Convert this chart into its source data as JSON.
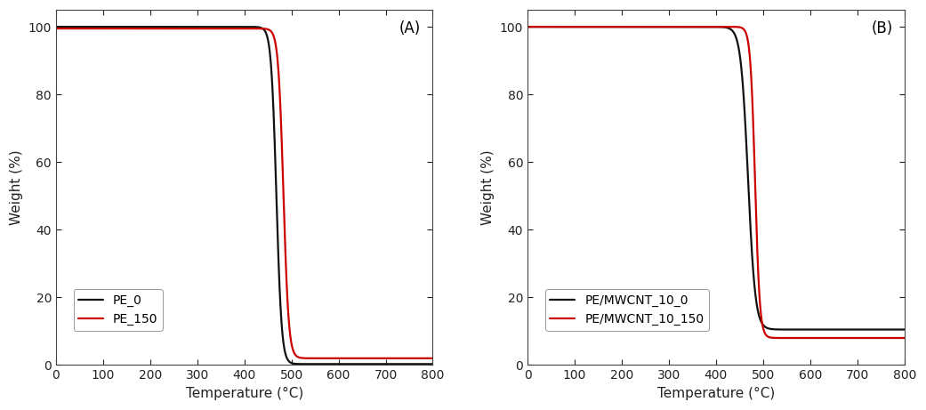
{
  "panel_A": {
    "label": "(A)",
    "xlabel": "Temperature (°C)",
    "ylabel": "Weight (%)",
    "xlim": [
      0,
      800
    ],
    "ylim": [
      0,
      105
    ],
    "yticks": [
      0,
      20,
      40,
      60,
      80,
      100
    ],
    "xticks": [
      0,
      100,
      200,
      300,
      400,
      500,
      600,
      700,
      800
    ],
    "curves": [
      {
        "label": "PE_0",
        "color": "#111111",
        "start_val": 100.0,
        "end_val": 0.3,
        "inflection": 468,
        "steepness": 0.18
      },
      {
        "label": "PE_150",
        "color": "#cc0000",
        "start_val": 99.5,
        "end_val": 2.0,
        "inflection": 483,
        "steepness": 0.18
      }
    ]
  },
  "panel_B": {
    "label": "(B)",
    "xlabel": "Temperature (°C)",
    "ylabel": "Weight (%)",
    "xlim": [
      0,
      800
    ],
    "ylim": [
      0,
      105
    ],
    "yticks": [
      0,
      20,
      40,
      60,
      80,
      100
    ],
    "xticks": [
      0,
      100,
      200,
      300,
      400,
      500,
      600,
      700,
      800
    ],
    "curves": [
      {
        "label": "PE/MWCNT_10_0",
        "color": "#111111",
        "start_val": 100.0,
        "end_val": 10.5,
        "inflection": 468,
        "steepness": 0.13
      },
      {
        "label": "PE/MWCNT_10_150",
        "color": "#cc0000",
        "start_val": 100.0,
        "end_val": 8.0,
        "inflection": 483,
        "steepness": 0.2
      }
    ]
  },
  "figure_width": 10.41,
  "figure_height": 4.61,
  "dpi": 100,
  "bg_color": "#ffffff",
  "spine_color": "#444444",
  "tick_color": "#222222",
  "label_fontsize": 11,
  "tick_fontsize": 10,
  "legend_fontsize": 10,
  "panel_label_fontsize": 12,
  "line_width": 1.6
}
